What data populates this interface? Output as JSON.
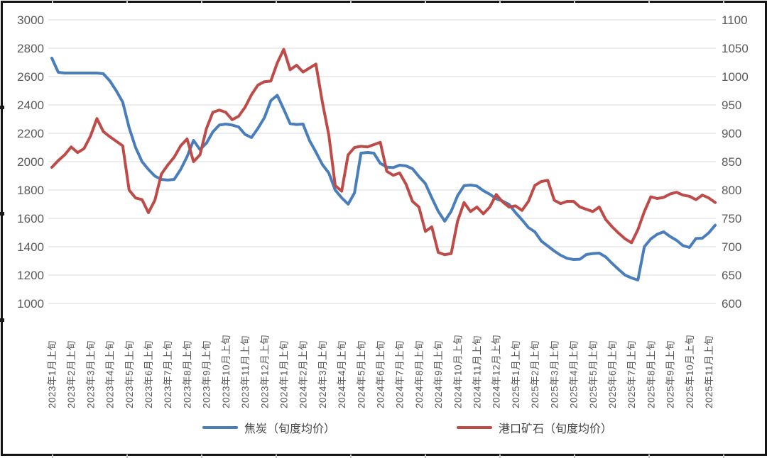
{
  "chart_data": {
    "type": "line",
    "title": "",
    "points_per_month": 3,
    "x_tick_labels": [
      "2023年1月上旬",
      "2023年2月上旬",
      "2023年3月上旬",
      "2023年4月上旬",
      "2023年5月上旬",
      "2023年6月上旬",
      "2023年7月上旬",
      "2023年8月上旬",
      "2023年9月上旬",
      "2023年10月上旬",
      "2023年11月上旬",
      "2023年12月上旬",
      "2024年1月上旬",
      "2024年2月上旬",
      "2024年3月上旬",
      "2024年4月上旬",
      "2024年5月上旬",
      "2024年6月上旬",
      "2024年7月上旬",
      "2024年8月上旬",
      "2024年9月上旬",
      "2024年10月上旬",
      "2024年11月上旬",
      "2024年12月上旬",
      "2025年1月上旬",
      "2025年2月上旬",
      "2025年3月上旬",
      "2025年4月上旬",
      "2025年5月上旬",
      "2025年6月上旬",
      "2025年7月上旬",
      "2025年8月上旬",
      "2025年9月上旬",
      "2025年10月上旬",
      "2025年11月上旬"
    ],
    "left_axis": {
      "min": 1000,
      "max": 3000,
      "step": 200,
      "ticks": [
        "3000",
        "2800",
        "2600",
        "2400",
        "2200",
        "2000",
        "1800",
        "1600",
        "1400",
        "1200",
        "1000"
      ]
    },
    "right_axis": {
      "min": 600,
      "max": 1100,
      "step": 50,
      "ticks": [
        "1100",
        "1050",
        "1000",
        "950",
        "900",
        "850",
        "800",
        "750",
        "700",
        "650",
        "600"
      ]
    },
    "grid": true,
    "gridline_color": "#d9d9d9",
    "legend_position": "bottom",
    "series": [
      {
        "name": "焦炭（旬度均价）",
        "color": "#4a7ebb",
        "axis": "left",
        "values": [
          2730,
          2630,
          2625,
          2625,
          2625,
          2625,
          2625,
          2625,
          2620,
          2570,
          2500,
          2420,
          2240,
          2100,
          2000,
          1945,
          1898,
          1875,
          1870,
          1875,
          1945,
          2035,
          2150,
          2085,
          2130,
          2210,
          2258,
          2265,
          2258,
          2245,
          2192,
          2170,
          2235,
          2310,
          2430,
          2468,
          2370,
          2268,
          2262,
          2265,
          2150,
          2068,
          1980,
          1920,
          1800,
          1745,
          1700,
          1780,
          2060,
          2065,
          2060,
          1988,
          1962,
          1958,
          1975,
          1970,
          1950,
          1895,
          1845,
          1745,
          1650,
          1580,
          1650,
          1760,
          1830,
          1835,
          1828,
          1795,
          1770,
          1738,
          1722,
          1698,
          1640,
          1590,
          1535,
          1505,
          1440,
          1405,
          1370,
          1340,
          1318,
          1310,
          1312,
          1345,
          1352,
          1355,
          1328,
          1282,
          1240,
          1200,
          1180,
          1165,
          1400,
          1455,
          1488,
          1505,
          1472,
          1445,
          1408,
          1395,
          1458,
          1460,
          1498,
          1552
        ]
      },
      {
        "name": "港口矿石（旬度均价）",
        "color": "#be4b48",
        "axis": "right",
        "values": [
          840,
          852,
          862,
          876,
          866,
          873,
          895,
          926,
          903,
          894,
          886,
          878,
          800,
          786,
          783,
          760,
          782,
          828,
          844,
          858,
          878,
          890,
          850,
          862,
          908,
          937,
          941,
          937,
          924,
          930,
          946,
          968,
          985,
          991,
          992,
          1024,
          1048,
          1012,
          1020,
          1008,
          1015,
          1022,
          955,
          897,
          808,
          798,
          862,
          875,
          877,
          876,
          880,
          884,
          833,
          826,
          830,
          810,
          780,
          770,
          727,
          735,
          690,
          686,
          688,
          745,
          778,
          762,
          770,
          758,
          770,
          792,
          779,
          770,
          772,
          764,
          780,
          808,
          815,
          817,
          782,
          776,
          780,
          780,
          770,
          766,
          762,
          770,
          748,
          735,
          724,
          714,
          707,
          730,
          762,
          788,
          785,
          787,
          793,
          796,
          791,
          789,
          783,
          791,
          786,
          778
        ]
      }
    ]
  },
  "legend": {
    "coke_label": "焦炭（旬度均价）",
    "ore_label": "港口矿石（旬度均价）"
  },
  "colors": {
    "coke_line": "#4a7ebb",
    "ore_line": "#be4b48",
    "axis_text": "#595959",
    "frame_border": "#141414",
    "gridline": "#d9d9d9"
  }
}
